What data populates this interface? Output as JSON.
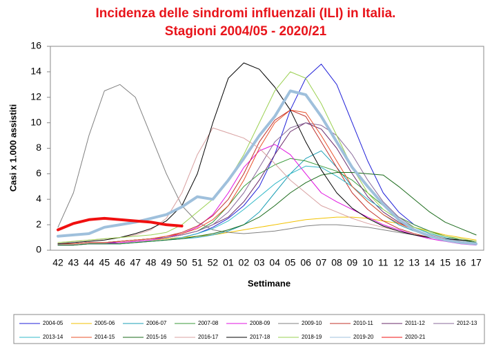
{
  "chart_data": {
    "type": "line",
    "title": "Incidenza delle sindromi influenzali (ILI) in Italia.",
    "subtitle": "Stagioni 2004/05 - 2020/21",
    "x_label": "Settimane",
    "y_label": "Casi x 1.000 assistiti",
    "categories": [
      "42",
      "43",
      "44",
      "45",
      "46",
      "47",
      "48",
      "49",
      "50",
      "51",
      "52",
      "01",
      "02",
      "03",
      "04",
      "05",
      "06",
      "07",
      "08",
      "09",
      "10",
      "11",
      "12",
      "13",
      "14",
      "15",
      "16",
      "17"
    ],
    "ylim": [
      0,
      16
    ],
    "yticks": [
      0,
      2,
      4,
      6,
      8,
      10,
      12,
      14,
      16
    ],
    "series": [
      {
        "name": "2004-05",
        "color": "#1f1fd8",
        "width": 1,
        "values": [
          0.5,
          0.5,
          0.6,
          0.6,
          0.6,
          0.7,
          0.8,
          0.9,
          1.0,
          1.3,
          1.8,
          2.5,
          3.5,
          5,
          7.5,
          11,
          13.5,
          14.6,
          13,
          10,
          7,
          4.5,
          3,
          2,
          1.5,
          1.1,
          0.8,
          0.6
        ]
      },
      {
        "name": "2005-06",
        "color": "#f2c200",
        "width": 1,
        "values": [
          0.4,
          0.4,
          0.5,
          0.5,
          0.6,
          0.7,
          0.8,
          0.9,
          1.0,
          1.1,
          1.2,
          1.4,
          1.6,
          1.8,
          2.0,
          2.2,
          2.4,
          2.5,
          2.6,
          2.6,
          2.5,
          2.3,
          2.1,
          1.8,
          1.5,
          1.2,
          1.0,
          0.8
        ]
      },
      {
        "name": "2006-07",
        "color": "#1a9fb5",
        "width": 1,
        "values": [
          0.4,
          0.4,
          0.5,
          0.5,
          0.5,
          0.6,
          0.7,
          0.8,
          0.9,
          1.0,
          1.2,
          1.5,
          2.0,
          3.0,
          4.5,
          6.0,
          7.2,
          7.8,
          6.5,
          5,
          3.8,
          2.8,
          2,
          1.5,
          1.1,
          0.8,
          0.6,
          0.5
        ]
      },
      {
        "name": "2007-08",
        "color": "#3a9a3a",
        "width": 1,
        "values": [
          0.5,
          0.5,
          0.6,
          0.6,
          0.7,
          0.8,
          0.9,
          1.0,
          1.2,
          1.5,
          2.2,
          3.5,
          5,
          6,
          6.7,
          7.2,
          7,
          6.6,
          6.2,
          5.5,
          4.5,
          3.5,
          2.6,
          2,
          1.5,
          1.1,
          0.8,
          0.6
        ]
      },
      {
        "name": "2008-09",
        "color": "#e010e0",
        "width": 1,
        "values": [
          0.4,
          0.4,
          0.5,
          0.5,
          0.6,
          0.7,
          0.8,
          1.0,
          1.3,
          1.8,
          2.8,
          4.5,
          6.5,
          7.8,
          8.3,
          7.5,
          6,
          4.5,
          3.8,
          3.2,
          2.6,
          2,
          1.6,
          1.2,
          0.9,
          0.7,
          0.5,
          0.4
        ]
      },
      {
        "name": "2009-10",
        "color": "#808080",
        "width": 1,
        "values": [
          1.8,
          4.5,
          9,
          12.5,
          13,
          12,
          9,
          6,
          3.5,
          2.2,
          1.6,
          1.4,
          1.3,
          1.4,
          1.5,
          1.7,
          1.9,
          2.0,
          2.0,
          1.9,
          1.8,
          1.6,
          1.4,
          1.2,
          1.0,
          0.8,
          0.6,
          0.5
        ]
      },
      {
        "name": "2010-11",
        "color": "#c0302a",
        "width": 1,
        "values": [
          0.5,
          0.5,
          0.6,
          0.6,
          0.7,
          0.8,
          0.9,
          1.1,
          1.4,
          1.9,
          2.7,
          4,
          6,
          8.5,
          10.2,
          11,
          10.5,
          8.5,
          6.5,
          4.5,
          3.2,
          2.3,
          1.7,
          1.3,
          1.0,
          0.8,
          0.6,
          0.5
        ]
      },
      {
        "name": "2011-12",
        "color": "#6a2a6a",
        "width": 1,
        "values": [
          0.5,
          0.5,
          0.6,
          0.6,
          0.7,
          0.8,
          0.9,
          1.0,
          1.2,
          1.5,
          2.0,
          2.6,
          3.8,
          5.5,
          7.5,
          9.3,
          10,
          9.5,
          8,
          6,
          4.2,
          3,
          2.2,
          1.6,
          1.2,
          0.9,
          0.7,
          0.5
        ]
      },
      {
        "name": "2012-13",
        "color": "#8a6a9a",
        "width": 1,
        "values": [
          0.5,
          0.5,
          0.6,
          0.6,
          0.7,
          0.8,
          0.9,
          1.0,
          1.2,
          1.5,
          2.0,
          3,
          4.5,
          6.5,
          8.5,
          9.6,
          10,
          9.8,
          9,
          7.5,
          5.5,
          3.8,
          2.6,
          1.8,
          1.3,
          1.0,
          0.7,
          0.5
        ]
      },
      {
        "name": "2013-14",
        "color": "#30b8c8",
        "width": 1,
        "values": [
          0.4,
          0.4,
          0.5,
          0.5,
          0.5,
          0.6,
          0.7,
          0.8,
          1.0,
          1.3,
          1.7,
          2.3,
          3.2,
          4.2,
          5.2,
          6.0,
          6.6,
          6.5,
          5.8,
          5,
          4,
          3.2,
          2.4,
          1.8,
          1.3,
          1,
          0.7,
          0.5
        ]
      },
      {
        "name": "2014-15",
        "color": "#e8502a",
        "width": 1,
        "values": [
          0.5,
          0.5,
          0.6,
          0.6,
          0.7,
          0.8,
          0.9,
          1.1,
          1.3,
          1.7,
          2.4,
          3.5,
          5.5,
          8,
          10,
          11,
          10.8,
          9,
          7,
          5,
          3.8,
          2.8,
          2.1,
          1.6,
          1.2,
          0.9,
          0.7,
          0.5
        ]
      },
      {
        "name": "2015-16",
        "color": "#1a6a1a",
        "width": 1,
        "values": [
          0.4,
          0.4,
          0.5,
          0.5,
          0.5,
          0.6,
          0.7,
          0.8,
          0.9,
          1.1,
          1.3,
          1.6,
          2.0,
          2.6,
          3.5,
          4.5,
          5.3,
          5.9,
          6.1,
          6.1,
          6.0,
          5.9,
          5,
          4,
          3,
          2.2,
          1.7,
          1.2
        ]
      },
      {
        "name": "2016-17",
        "color": "#d8a0a0",
        "width": 1,
        "values": [
          0.6,
          0.7,
          0.8,
          0.9,
          1.0,
          1.2,
          1.6,
          2.5,
          4.5,
          7.5,
          9.6,
          9.2,
          8.8,
          8,
          6.8,
          5.5,
          4.5,
          3.5,
          3,
          2.5,
          2.1,
          1.8,
          1.5,
          1.2,
          1,
          0.8,
          0.6,
          0.5
        ]
      },
      {
        "name": "2017-18",
        "color": "#000000",
        "width": 1,
        "values": [
          0.5,
          0.6,
          0.7,
          0.8,
          1.0,
          1.3,
          1.7,
          2.3,
          3.5,
          6,
          10,
          13.5,
          14.7,
          14.2,
          12.8,
          11,
          8.5,
          6.3,
          4.5,
          3.3,
          2.5,
          1.9,
          1.5,
          1.2,
          1.0,
          0.9,
          0.8,
          0.7
        ]
      },
      {
        "name": "2018-19",
        "color": "#9ad050",
        "width": 1,
        "values": [
          0.6,
          0.7,
          0.8,
          0.9,
          1.0,
          1.1,
          1.2,
          1.4,
          2.0,
          3.0,
          4,
          5.5,
          7.5,
          10,
          12.5,
          14,
          13.5,
          11.5,
          9,
          6.5,
          4.5,
          3.2,
          2.4,
          1.8,
          1.4,
          1.1,
          0.9,
          0.7
        ]
      },
      {
        "name": "2019-20",
        "color": "#9fc0dc",
        "width": 4,
        "values": [
          1.1,
          1.2,
          1.3,
          1.8,
          2.0,
          2.2,
          2.5,
          2.8,
          3.4,
          4.2,
          4.0,
          5.5,
          7.2,
          9,
          10.5,
          12.5,
          12.2,
          10.5,
          8.5,
          6.5,
          5,
          3.6,
          2.4,
          1.6,
          1.1,
          0.8,
          0.6,
          0.5
        ]
      },
      {
        "name": "2020-21",
        "color": "#f01010",
        "width": 4,
        "values": [
          1.6,
          2.1,
          2.4,
          2.5,
          2.4,
          2.3,
          2.2,
          2.0,
          1.9,
          null,
          null,
          null,
          null,
          null,
          null,
          null,
          null,
          null,
          null,
          null,
          null,
          null,
          null,
          null,
          null,
          null,
          null,
          null
        ]
      }
    ]
  }
}
